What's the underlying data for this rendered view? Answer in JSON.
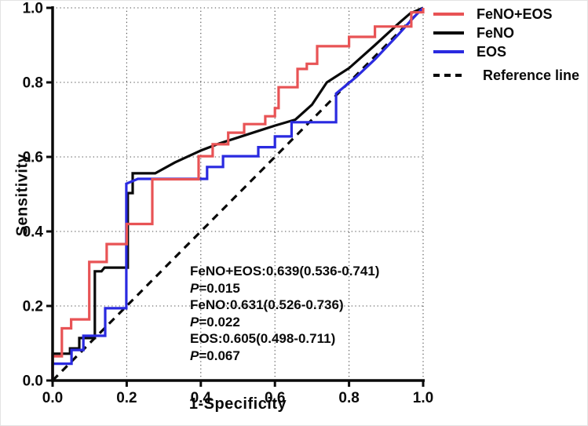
{
  "figure": {
    "xlabel": "1-Specificity",
    "ylabel": "Sensitivity"
  },
  "axes": {
    "x_tick_labels": [
      "0.0",
      "0.2",
      "0.4",
      "0.6",
      "0.8",
      "1.0"
    ],
    "y_tick_labels": [
      "0.0",
      "0.2",
      "0.4",
      "0.6",
      "0.8",
      "1.0"
    ]
  },
  "legend": {
    "items": [
      {
        "label": "FeNO+EOS",
        "color": "#e85355",
        "dashed": false
      },
      {
        "label": "FeNO",
        "color": "#0a0a0a",
        "dashed": false
      },
      {
        "label": "EOS",
        "color": "#2a2ae0",
        "dashed": false
      },
      {
        "label": "Reference line",
        "color": "#0a0a0a",
        "dashed": true
      }
    ]
  },
  "annotation": {
    "lines": [
      {
        "text": "FeNO+EOS:0.639(0.536-0.741)"
      },
      {
        "italic": "P",
        "text": "=0.015"
      },
      {
        "text": "FeNO:0.631(0.526-0.736)"
      },
      {
        "italic": "P",
        "text": "=0.022"
      },
      {
        "text": "EOS:0.605(0.498-0.711)"
      },
      {
        "italic": "P",
        "text": "=0.067"
      }
    ]
  },
  "chart_data": {
    "type": "line",
    "subtype": "roc-curve",
    "title": "",
    "xlabel": "1-Specificity",
    "ylabel": "Sensitivity",
    "xlim": [
      0,
      1
    ],
    "ylim": [
      0,
      1
    ],
    "xticks": [
      0,
      0.2,
      0.4,
      0.6,
      0.8,
      1.0
    ],
    "yticks": [
      0,
      0.2,
      0.4,
      0.6,
      0.8,
      1.0
    ],
    "grid": "dotted",
    "legend_position": "outside-top-right",
    "auc_results": [
      {
        "name": "FeNO+EOS",
        "auc": 0.639,
        "ci_95": "0.536-0.741",
        "p_value": 0.015
      },
      {
        "name": "FeNO",
        "auc": 0.631,
        "ci_95": "0.526-0.736",
        "p_value": 0.022
      },
      {
        "name": "EOS",
        "auc": 0.605,
        "ci_95": "0.498-0.711",
        "p_value": 0.067
      }
    ],
    "series": [
      {
        "name": "FeNO+EOS",
        "color": "#e85355",
        "dashed": false,
        "width": 3.2,
        "points": [
          [
            0,
            0
          ],
          [
            0,
            0.065
          ],
          [
            0.025,
            0.065
          ],
          [
            0.025,
            0.14
          ],
          [
            0.05,
            0.14
          ],
          [
            0.05,
            0.164
          ],
          [
            0.099,
            0.164
          ],
          [
            0.099,
            0.318
          ],
          [
            0.146,
            0.318
          ],
          [
            0.146,
            0.366
          ],
          [
            0.2,
            0.366
          ],
          [
            0.2,
            0.42
          ],
          [
            0.269,
            0.42
          ],
          [
            0.269,
            0.54
          ],
          [
            0.394,
            0.54
          ],
          [
            0.394,
            0.602
          ],
          [
            0.432,
            0.602
          ],
          [
            0.432,
            0.634
          ],
          [
            0.474,
            0.634
          ],
          [
            0.474,
            0.665
          ],
          [
            0.517,
            0.665
          ],
          [
            0.517,
            0.688
          ],
          [
            0.574,
            0.688
          ],
          [
            0.574,
            0.709
          ],
          [
            0.6,
            0.709
          ],
          [
            0.6,
            0.731
          ],
          [
            0.61,
            0.731
          ],
          [
            0.61,
            0.787
          ],
          [
            0.661,
            0.787
          ],
          [
            0.661,
            0.836
          ],
          [
            0.686,
            0.836
          ],
          [
            0.686,
            0.85
          ],
          [
            0.714,
            0.85
          ],
          [
            0.714,
            0.897
          ],
          [
            0.8,
            0.897
          ],
          [
            0.8,
            0.922
          ],
          [
            0.87,
            0.922
          ],
          [
            0.87,
            0.95
          ],
          [
            0.968,
            0.95
          ],
          [
            0.968,
            0.988
          ],
          [
            1,
            0.988
          ],
          [
            1,
            1
          ]
        ]
      },
      {
        "name": "FeNO",
        "color": "#0a0a0a",
        "dashed": false,
        "width": 3.2,
        "points": [
          [
            0,
            0
          ],
          [
            0,
            0.072
          ],
          [
            0.047,
            0.072
          ],
          [
            0.047,
            0.086
          ],
          [
            0.072,
            0.086
          ],
          [
            0.072,
            0.114
          ],
          [
            0.114,
            0.114
          ],
          [
            0.114,
            0.293
          ],
          [
            0.132,
            0.293
          ],
          [
            0.14,
            0.303
          ],
          [
            0.203,
            0.303
          ],
          [
            0.203,
            0.503
          ],
          [
            0.216,
            0.503
          ],
          [
            0.216,
            0.556
          ],
          [
            0.277,
            0.556
          ],
          [
            0.33,
            0.585
          ],
          [
            0.4,
            0.617
          ],
          [
            0.45,
            0.636
          ],
          [
            0.5,
            0.652
          ],
          [
            0.55,
            0.668
          ],
          [
            0.6,
            0.684
          ],
          [
            0.655,
            0.7
          ],
          [
            0.7,
            0.74
          ],
          [
            0.74,
            0.8
          ],
          [
            0.8,
            0.838
          ],
          [
            0.87,
            0.9
          ],
          [
            0.93,
            0.955
          ],
          [
            0.965,
            0.985
          ],
          [
            1,
            1
          ]
        ]
      },
      {
        "name": "EOS",
        "color": "#2a2ae0",
        "dashed": false,
        "width": 3.2,
        "points": [
          [
            0,
            0
          ],
          [
            0,
            0.045
          ],
          [
            0.051,
            0.045
          ],
          [
            0.051,
            0.082
          ],
          [
            0.083,
            0.082
          ],
          [
            0.083,
            0.12
          ],
          [
            0.142,
            0.12
          ],
          [
            0.142,
            0.194
          ],
          [
            0.199,
            0.194
          ],
          [
            0.199,
            0.528
          ],
          [
            0.23,
            0.541
          ],
          [
            0.417,
            0.541
          ],
          [
            0.417,
            0.573
          ],
          [
            0.46,
            0.573
          ],
          [
            0.46,
            0.602
          ],
          [
            0.555,
            0.602
          ],
          [
            0.555,
            0.626
          ],
          [
            0.6,
            0.626
          ],
          [
            0.6,
            0.655
          ],
          [
            0.645,
            0.655
          ],
          [
            0.645,
            0.693
          ],
          [
            0.765,
            0.693
          ],
          [
            0.765,
            0.77
          ],
          [
            0.82,
            0.815
          ],
          [
            0.87,
            0.862
          ],
          [
            0.93,
            0.925
          ],
          [
            0.975,
            0.975
          ],
          [
            1,
            1
          ]
        ]
      },
      {
        "name": "Reference line",
        "color": "#0a0a0a",
        "dashed": true,
        "width": 3.2,
        "points": [
          [
            0,
            0
          ],
          [
            1,
            1
          ]
        ]
      }
    ]
  }
}
